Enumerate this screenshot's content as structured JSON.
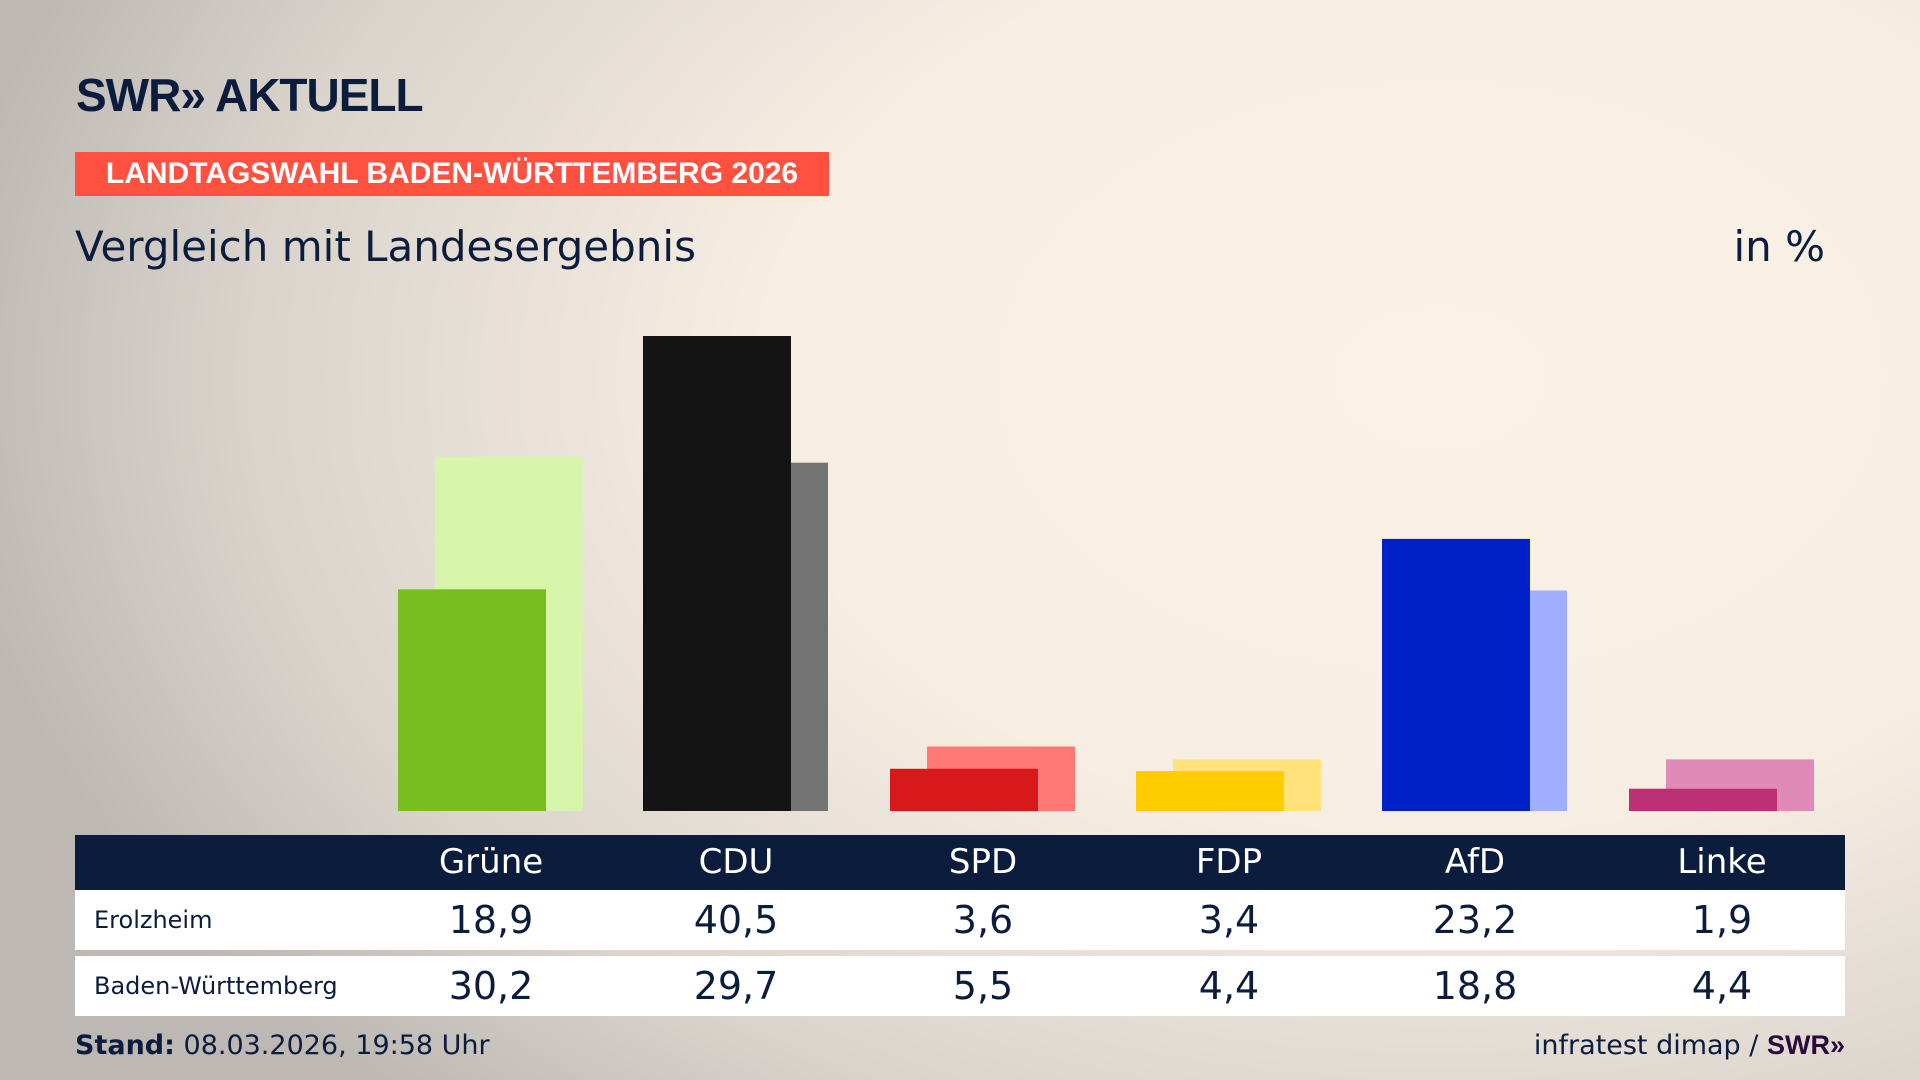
{
  "header": {
    "logo_text": "SWR» AKTUELL",
    "banner": "LANDTAGSWAHL BADEN-WÜRTTEMBERG 2026",
    "subtitle": "Vergleich mit Landesergebnis",
    "unit": "in %"
  },
  "chart_data": {
    "type": "bar",
    "title": "Vergleich mit Landesergebnis",
    "ylabel": "in %",
    "categories": [
      "Grüne",
      "CDU",
      "SPD",
      "FDP",
      "AfD",
      "Linke"
    ],
    "series": [
      {
        "name": "Erolzheim",
        "values": [
          18.9,
          40.5,
          3.6,
          3.4,
          23.2,
          1.9
        ],
        "colors": [
          "#78be1e",
          "#141414",
          "#d7191c",
          "#ffcc00",
          "#0021c8",
          "#be3075"
        ]
      },
      {
        "name": "Baden-Württemberg",
        "values": [
          30.2,
          29.7,
          5.5,
          4.4,
          18.8,
          4.4
        ],
        "colors": [
          "#d6f5aa",
          "#737373",
          "#ff7a75",
          "#ffe27a",
          "#a0aeff",
          "#e08ab8"
        ]
      }
    ],
    "ylim": [
      0,
      42
    ],
    "grid": false
  },
  "table": {
    "rows": [
      {
        "label": "Erolzheim",
        "values": [
          "18,9",
          "40,5",
          "3,6",
          "3,4",
          "23,2",
          "1,9"
        ]
      },
      {
        "label": "Baden-Württemberg",
        "values": [
          "30,2",
          "29,7",
          "5,5",
          "4,4",
          "18,8",
          "4,4"
        ]
      }
    ]
  },
  "footer": {
    "stand_label": "Stand:",
    "stand_value": "08.03.2026, 19:58 Uhr",
    "source": "infratest dimap /",
    "source_logo": "SWR»"
  },
  "colors": {
    "navy": "#0c1c3c",
    "banner": "#ff5040"
  }
}
